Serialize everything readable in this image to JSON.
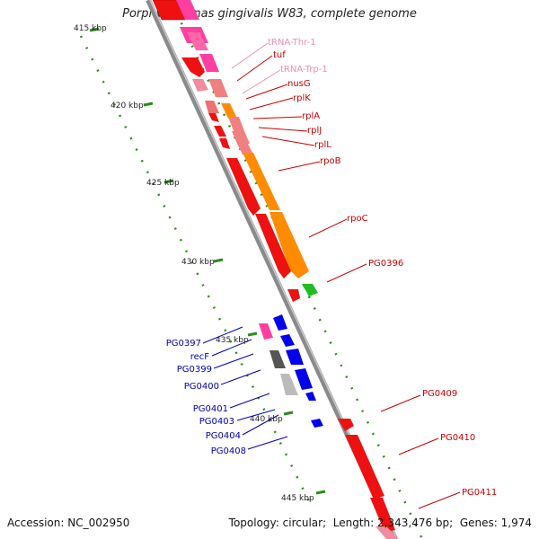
{
  "title": "Porphyromonas gingivalis W83, complete genome",
  "footer": {
    "accession_label": "Accession:",
    "accession": "NC_002950",
    "topology_label": "Topology:",
    "topology": "circular",
    "length_label": "Length:",
    "length": "2,343,476 bp",
    "genes_label": "Genes:",
    "genes": "1,974"
  },
  "colors": {
    "backbone": "#8a8a8a",
    "ticks": "#2e8b1e",
    "forward_label": "#cc0000",
    "reverse_label": "#0000aa",
    "trna_label": "#f08cb4"
  },
  "scale_labels": [
    "415 kbp",
    "420 kbp",
    "425 kbp",
    "430 kbp",
    "435 kbp",
    "440 kbp",
    "445 kbp"
  ],
  "forward_labels": [
    "tRNA-Thr-1",
    "tuf",
    "tRNA-Trp-1",
    "nusG",
    "rplK",
    "rplA",
    "rplJ",
    "rplL",
    "rpoB",
    "rpoC",
    "PG0396",
    "PG0409",
    "PG0410",
    "PG0411"
  ],
  "reverse_labels": [
    "PG0397",
    "recF",
    "PG0399",
    "PG0400",
    "PG0401",
    "PG0403",
    "PG0404",
    "PG0408"
  ]
}
